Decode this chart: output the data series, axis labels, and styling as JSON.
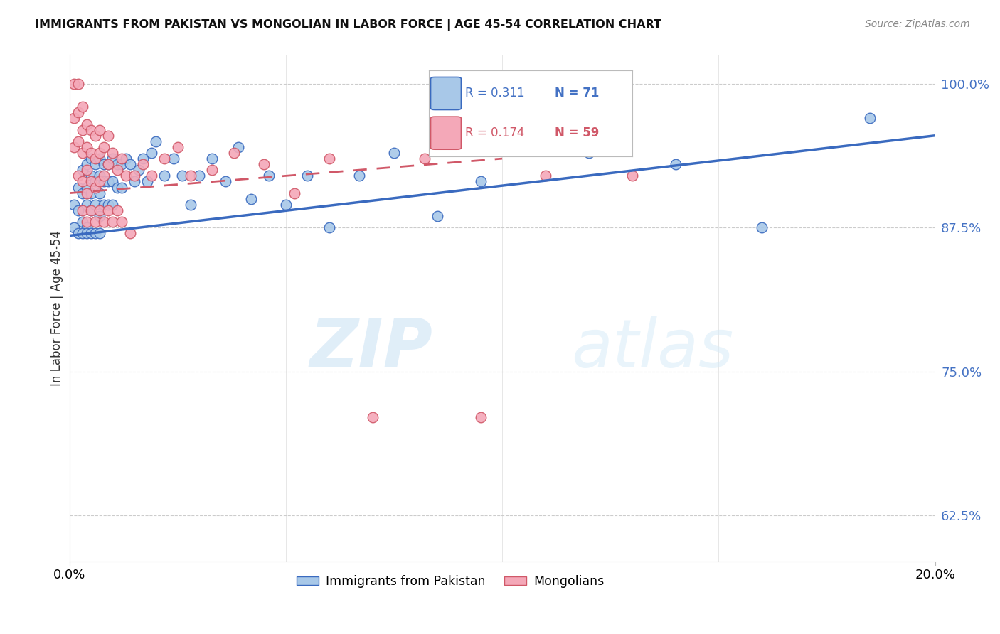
{
  "title": "IMMIGRANTS FROM PAKISTAN VS MONGOLIAN IN LABOR FORCE | AGE 45-54 CORRELATION CHART",
  "source": "Source: ZipAtlas.com",
  "ylabel": "In Labor Force | Age 45-54",
  "yticks": [
    0.625,
    0.75,
    0.875,
    1.0
  ],
  "ytick_labels": [
    "62.5%",
    "75.0%",
    "87.5%",
    "100.0%"
  ],
  "xmin": 0.0,
  "xmax": 0.2,
  "ymin": 0.585,
  "ymax": 1.025,
  "legend_r1": "R = 0.311",
  "legend_n1": "N = 71",
  "legend_r2": "R = 0.174",
  "legend_n2": "N = 59",
  "color_pakistan": "#a8c8e8",
  "color_mongolia": "#f4a8b8",
  "color_line_pakistan": "#3a6abf",
  "color_line_mongolia": "#d05868",
  "watermark_zip": "ZIP",
  "watermark_atlas": "atlas",
  "pak_trend_x0": 0.0,
  "pak_trend_y0": 0.868,
  "pak_trend_x1": 0.2,
  "pak_trend_y1": 0.955,
  "mon_trend_x0": 0.0,
  "mon_trend_y0": 0.905,
  "mon_trend_x1": 0.1,
  "mon_trend_y1": 0.935,
  "pakistan_x": [
    0.001,
    0.001,
    0.002,
    0.002,
    0.003,
    0.003,
    0.003,
    0.004,
    0.004,
    0.004,
    0.004,
    0.005,
    0.005,
    0.005,
    0.005,
    0.006,
    0.006,
    0.006,
    0.007,
    0.007,
    0.007,
    0.007,
    0.008,
    0.008,
    0.008,
    0.009,
    0.009,
    0.009,
    0.01,
    0.01,
    0.01,
    0.011,
    0.011,
    0.012,
    0.012,
    0.013,
    0.014,
    0.015,
    0.016,
    0.017,
    0.018,
    0.019,
    0.02,
    0.022,
    0.024,
    0.026,
    0.028,
    0.03,
    0.033,
    0.036,
    0.039,
    0.042,
    0.046,
    0.05,
    0.055,
    0.06,
    0.067,
    0.075,
    0.085,
    0.095,
    0.105,
    0.12,
    0.14,
    0.16,
    0.185,
    0.002,
    0.003,
    0.004,
    0.005,
    0.006,
    0.007
  ],
  "pakistan_y": [
    0.895,
    0.875,
    0.91,
    0.89,
    0.925,
    0.905,
    0.88,
    0.93,
    0.91,
    0.895,
    0.875,
    0.935,
    0.92,
    0.905,
    0.89,
    0.93,
    0.915,
    0.895,
    0.935,
    0.92,
    0.905,
    0.885,
    0.93,
    0.915,
    0.895,
    0.93,
    0.915,
    0.895,
    0.935,
    0.915,
    0.895,
    0.93,
    0.91,
    0.93,
    0.91,
    0.935,
    0.93,
    0.915,
    0.925,
    0.935,
    0.915,
    0.94,
    0.95,
    0.92,
    0.935,
    0.92,
    0.895,
    0.92,
    0.935,
    0.915,
    0.945,
    0.9,
    0.92,
    0.895,
    0.92,
    0.875,
    0.92,
    0.94,
    0.885,
    0.915,
    0.96,
    0.94,
    0.93,
    0.875,
    0.97,
    0.87,
    0.87,
    0.87,
    0.87,
    0.87,
    0.87
  ],
  "mongolia_x": [
    0.001,
    0.001,
    0.001,
    0.002,
    0.002,
    0.002,
    0.002,
    0.003,
    0.003,
    0.003,
    0.003,
    0.004,
    0.004,
    0.004,
    0.004,
    0.005,
    0.005,
    0.005,
    0.006,
    0.006,
    0.006,
    0.007,
    0.007,
    0.007,
    0.008,
    0.008,
    0.009,
    0.009,
    0.01,
    0.011,
    0.012,
    0.013,
    0.015,
    0.017,
    0.019,
    0.022,
    0.025,
    0.028,
    0.033,
    0.038,
    0.045,
    0.052,
    0.06,
    0.07,
    0.082,
    0.095,
    0.11,
    0.13,
    0.003,
    0.004,
    0.005,
    0.006,
    0.007,
    0.008,
    0.009,
    0.01,
    0.011,
    0.012,
    0.014
  ],
  "mongolia_y": [
    1.0,
    0.97,
    0.945,
    1.0,
    0.975,
    0.95,
    0.92,
    0.98,
    0.96,
    0.94,
    0.915,
    0.965,
    0.945,
    0.925,
    0.905,
    0.96,
    0.94,
    0.915,
    0.955,
    0.935,
    0.91,
    0.96,
    0.94,
    0.915,
    0.945,
    0.92,
    0.955,
    0.93,
    0.94,
    0.925,
    0.935,
    0.92,
    0.92,
    0.93,
    0.92,
    0.935,
    0.945,
    0.92,
    0.925,
    0.94,
    0.93,
    0.905,
    0.935,
    0.71,
    0.935,
    0.71,
    0.92,
    0.92,
    0.89,
    0.88,
    0.89,
    0.88,
    0.89,
    0.88,
    0.89,
    0.88,
    0.89,
    0.88,
    0.87
  ]
}
